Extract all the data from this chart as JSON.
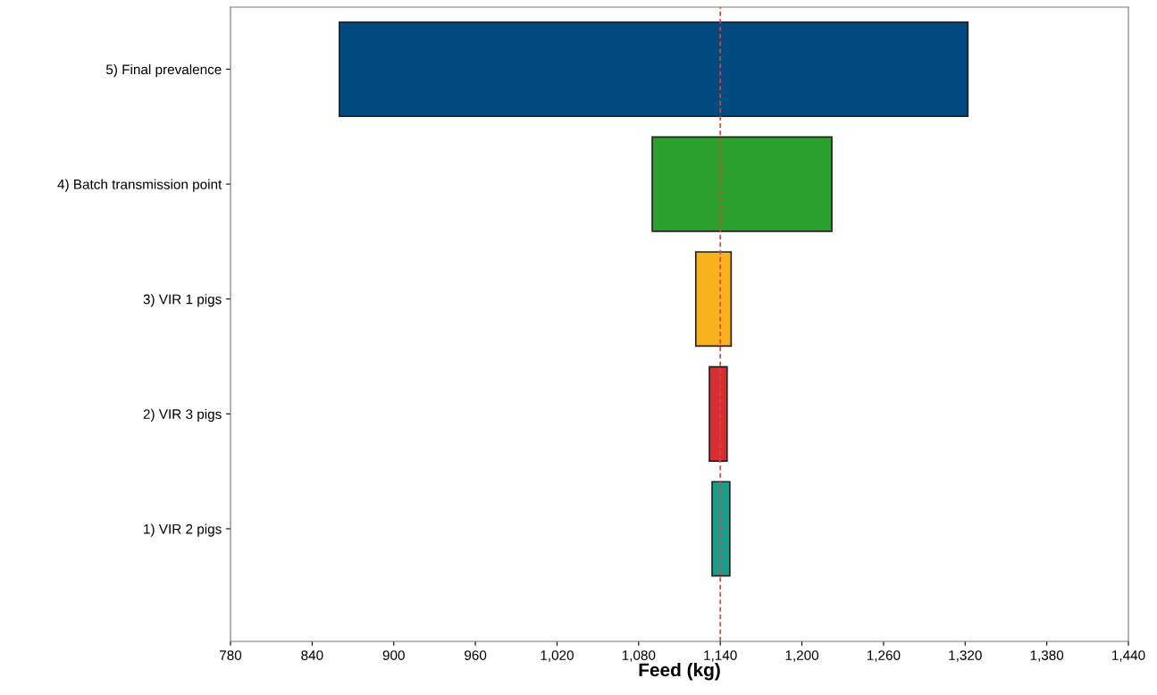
{
  "chart_data": {
    "type": "bar",
    "orientation": "horizontal",
    "xlabel": "Feed (kg)",
    "categories": [
      "5) Final prevalence",
      "4) Batch transmission point",
      "3) VIR 1 pigs",
      "2) VIR 3 pigs",
      "1) VIR 2 pigs"
    ],
    "base": [
      860,
      1090,
      1122,
      1132,
      1134
    ],
    "values": [
      462,
      132,
      26,
      13,
      13
    ],
    "colors": [
      "#004a80",
      "#2ca02c",
      "#f7b21e",
      "#d62f33",
      "#1a9e8c"
    ],
    "xlim": [
      780,
      1440
    ],
    "xticks": [
      780,
      840,
      900,
      960,
      {
        "value": 1020,
        "label": "1,020"
      },
      {
        "value": 1080,
        "label": "1,080"
      },
      {
        "value": 1140,
        "label": "1,140"
      },
      {
        "value": 1200,
        "label": "1,200"
      },
      {
        "value": 1260,
        "label": "1,260"
      },
      {
        "value": 1320,
        "label": "1,320"
      },
      {
        "value": 1380,
        "label": "1,380"
      },
      {
        "value": 1440,
        "label": "1,440"
      }
    ],
    "ref_lines": [
      {
        "axis": "x",
        "value": 1140,
        "color": "#e8413c",
        "line_style": "dashed"
      }
    ],
    "grid": false,
    "legend": false
  }
}
